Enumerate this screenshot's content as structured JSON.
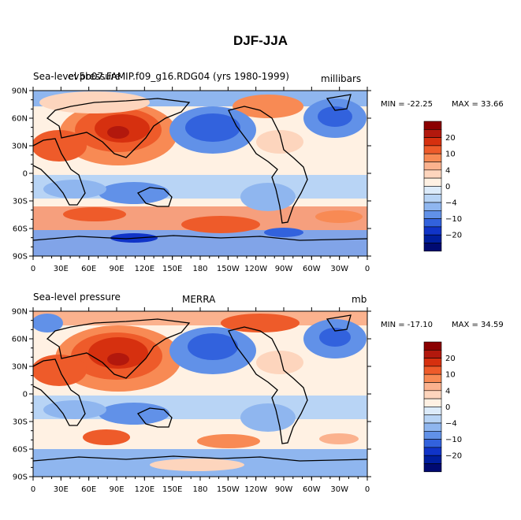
{
  "figure_title": "DJF-JJA",
  "chart_data": [
    {
      "type": "heatmap",
      "title_left": "Sea-level pressure",
      "title_center": "ev5b07.FAMIP.f09_g16.RDG04 (yrs 1980-1999)",
      "units": "millibars",
      "min_label": "MIN = -22.25",
      "max_label": "MAX =  33.66",
      "min": -22.25,
      "max": 33.66,
      "lat_ticks": [
        "90N",
        "60N",
        "30N",
        "0",
        "30S",
        "60S",
        "90S"
      ],
      "lon_ticks": [
        "0",
        "30E",
        "60E",
        "90E",
        "120E",
        "150E",
        "180",
        "150W",
        "120W",
        "90W",
        "60W",
        "30W",
        "0"
      ],
      "colorbar_labels": [
        "20",
        "10",
        "4",
        "0",
        "−4",
        "−10",
        "−20"
      ],
      "colorbar_levels": [
        25,
        20,
        15,
        10,
        7,
        4,
        2,
        0,
        -2,
        -4,
        -7,
        -10,
        -15,
        -20,
        -25
      ]
    },
    {
      "type": "heatmap",
      "title_left": "Sea-level pressure",
      "title_center": "MERRA",
      "units": "mb",
      "min_label": "MIN = -17.10",
      "max_label": "MAX =  34.59",
      "min": -17.1,
      "max": 34.59,
      "lat_ticks": [
        "90N",
        "60N",
        "30N",
        "0",
        "30S",
        "60S",
        "90S"
      ],
      "lon_ticks": [
        "0",
        "30E",
        "60E",
        "90E",
        "120E",
        "150E",
        "180",
        "150W",
        "120W",
        "90W",
        "60W",
        "30W",
        "0"
      ],
      "colorbar_labels": [
        "20",
        "10",
        "4",
        "0",
        "−4",
        "−10",
        "−20"
      ],
      "colorbar_levels": [
        25,
        20,
        15,
        10,
        7,
        4,
        2,
        0,
        -2,
        -4,
        -7,
        -10,
        -15,
        -20,
        -25
      ]
    }
  ],
  "colors": {
    "scale": [
      "#8b0000",
      "#b2180d",
      "#d6300f",
      "#ee5b2a",
      "#f88a54",
      "#fbb28e",
      "#fdd5bd",
      "#fff1e3",
      "#dcebfa",
      "#b8d4f5",
      "#8fb6ef",
      "#6191e8",
      "#3262dd",
      "#1034c8",
      "#001e9e",
      "#000a72"
    ]
  }
}
